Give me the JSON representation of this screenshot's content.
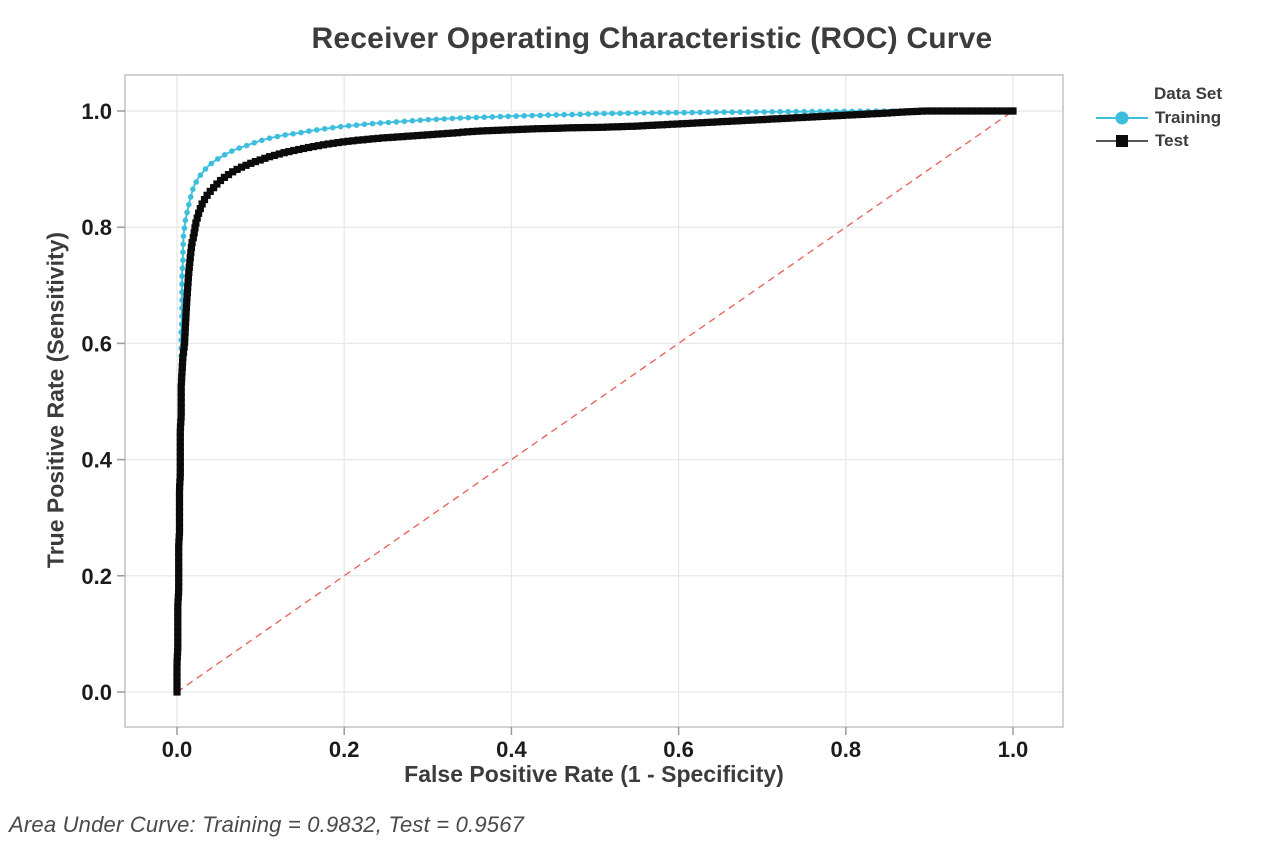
{
  "legend": {
    "title": "Data Set"
  },
  "footer": {
    "auc_note": "Area Under Curve: Training = 0.9832, Test = 0.9567"
  },
  "colors": {
    "training": "#3EBEDD",
    "test": "#0b0b0b",
    "diagonal": "#E4574E",
    "grid": "#e8e8e8",
    "plot_border": "#c6c6c6",
    "tick_mark": "#9a9a9a",
    "tick_label": "#1c1c1c",
    "text": "#3c3c3c"
  },
  "chart_data": {
    "type": "line",
    "title": "Receiver Operating Characteristic (ROC) Curve",
    "xlabel": "False Positive Rate (1 - Specificity)",
    "ylabel": "True Positive Rate (Sensitivity)",
    "xlim": [
      0,
      1
    ],
    "ylim": [
      0,
      1
    ],
    "grid": true,
    "legend_position": "right",
    "x_tick_values": [
      0,
      0.2,
      0.4,
      0.6,
      0.8,
      1.0
    ],
    "x_tick_labels": [
      "0.0",
      "0.2",
      "0.4",
      "0.6",
      "0.8",
      "1.0"
    ],
    "y_tick_values": [
      0,
      0.2,
      0.4,
      0.6,
      0.8,
      1.0
    ],
    "y_tick_labels": [
      "0.0",
      "0.2",
      "0.4",
      "0.6",
      "0.8",
      "1.0"
    ],
    "reference_line": {
      "from": [
        0,
        0
      ],
      "to": [
        1,
        1
      ],
      "style": "dashed",
      "color": "#E4574E"
    },
    "series": [
      {
        "name": "Training",
        "marker": "circle",
        "color": "#3EBEDD",
        "auc": 0.9832,
        "x": [
          0.001,
          0.001,
          0.001,
          0.001,
          0.001,
          0.001,
          0.002,
          0.002,
          0.002,
          0.002,
          0.002,
          0.002,
          0.003,
          0.003,
          0.003,
          0.003,
          0.003,
          0.003,
          0.003,
          0.004,
          0.004,
          0.004,
          0.004,
          0.004,
          0.004,
          0.004,
          0.005,
          0.005,
          0.005,
          0.005,
          0.005,
          0.005,
          0.006,
          0.006,
          0.006,
          0.006,
          0.006,
          0.007,
          0.007,
          0.008,
          0.009,
          0.01,
          0.012,
          0.014,
          0.016,
          0.018,
          0.02,
          0.023,
          0.026,
          0.03,
          0.034,
          0.038,
          0.043,
          0.048,
          0.054,
          0.06,
          0.067,
          0.074,
          0.082,
          0.09,
          0.1,
          0.11,
          0.12,
          0.13,
          0.145,
          0.16,
          0.175,
          0.19,
          0.205,
          0.22,
          0.235,
          0.25,
          0.265,
          0.28,
          0.3,
          0.32,
          0.34,
          0.36,
          0.38,
          0.4,
          0.42,
          0.44,
          0.46,
          0.48,
          0.5,
          0.525,
          0.55,
          0.575,
          0.6,
          0.625,
          0.65,
          0.675,
          0.7,
          0.725,
          0.75,
          0.775,
          0.8,
          0.825,
          0.85,
          0.87,
          0.89
        ],
        "y": [
          0.0,
          0.02,
          0.04,
          0.06,
          0.08,
          0.1,
          0.12,
          0.14,
          0.16,
          0.18,
          0.2,
          0.22,
          0.24,
          0.26,
          0.28,
          0.3,
          0.32,
          0.34,
          0.36,
          0.38,
          0.4,
          0.42,
          0.44,
          0.46,
          0.48,
          0.5,
          0.52,
          0.54,
          0.56,
          0.58,
          0.6,
          0.62,
          0.64,
          0.66,
          0.68,
          0.7,
          0.72,
          0.74,
          0.76,
          0.79,
          0.8,
          0.812,
          0.825,
          0.838,
          0.85,
          0.86,
          0.87,
          0.878,
          0.886,
          0.893,
          0.9,
          0.906,
          0.912,
          0.917,
          0.922,
          0.927,
          0.932,
          0.936,
          0.94,
          0.944,
          0.949,
          0.953,
          0.956,
          0.959,
          0.962,
          0.966,
          0.969,
          0.972,
          0.9745,
          0.9765,
          0.9785,
          0.98,
          0.9815,
          0.983,
          0.985,
          0.9865,
          0.988,
          0.989,
          0.99,
          0.991,
          0.992,
          0.9927,
          0.9935,
          0.994,
          0.9955,
          0.996,
          0.9965,
          0.997,
          0.9972,
          0.9975,
          0.998,
          0.9982,
          0.9985,
          0.9988,
          0.999,
          0.9992,
          0.9995,
          0.9997,
          1.0,
          1.0,
          1.0
        ]
      },
      {
        "name": "Test",
        "marker": "square",
        "color": "#0b0b0b",
        "auc": 0.9567,
        "x": [
          0.0,
          0.0,
          0.0,
          0.001,
          0.001,
          0.001,
          0.001,
          0.002,
          0.002,
          0.002,
          0.002,
          0.003,
          0.003,
          0.003,
          0.003,
          0.004,
          0.004,
          0.004,
          0.004,
          0.005,
          0.005,
          0.005,
          0.006,
          0.007,
          0.009,
          0.01,
          0.011,
          0.012,
          0.013,
          0.014,
          0.015,
          0.016,
          0.017,
          0.018,
          0.02,
          0.021,
          0.023,
          0.026,
          0.03,
          0.035,
          0.04,
          0.045,
          0.05,
          0.055,
          0.06,
          0.065,
          0.07,
          0.075,
          0.08,
          0.09,
          0.1,
          0.11,
          0.12,
          0.13,
          0.14,
          0.15,
          0.16,
          0.17,
          0.18,
          0.19,
          0.2,
          0.215,
          0.23,
          0.245,
          0.26,
          0.275,
          0.29,
          0.31,
          0.33,
          0.35,
          0.37,
          0.39,
          0.41,
          0.43,
          0.45,
          0.47,
          0.49,
          0.51,
          0.53,
          0.55,
          0.57,
          0.59,
          0.61,
          0.63,
          0.65,
          0.67,
          0.69,
          0.71,
          0.73,
          0.75,
          0.77,
          0.79,
          0.81,
          0.83,
          0.85,
          0.865,
          0.88,
          0.895,
          0.92,
          0.95,
          0.975,
          1.0
        ],
        "y": [
          0.0,
          0.025,
          0.05,
          0.075,
          0.1,
          0.125,
          0.15,
          0.175,
          0.2,
          0.225,
          0.25,
          0.275,
          0.3,
          0.325,
          0.35,
          0.375,
          0.4,
          0.425,
          0.45,
          0.475,
          0.5,
          0.525,
          0.55,
          0.575,
          0.6,
          0.63,
          0.655,
          0.68,
          0.7,
          0.72,
          0.735,
          0.75,
          0.762,
          0.773,
          0.785,
          0.795,
          0.81,
          0.825,
          0.84,
          0.853,
          0.862,
          0.87,
          0.878,
          0.884,
          0.889,
          0.894,
          0.898,
          0.902,
          0.905,
          0.911,
          0.916,
          0.921,
          0.925,
          0.929,
          0.932,
          0.935,
          0.938,
          0.9405,
          0.943,
          0.945,
          0.947,
          0.9495,
          0.9515,
          0.9535,
          0.955,
          0.9565,
          0.958,
          0.96,
          0.962,
          0.9645,
          0.966,
          0.9672,
          0.9683,
          0.9695,
          0.97,
          0.971,
          0.9715,
          0.972,
          0.973,
          0.974,
          0.9755,
          0.977,
          0.9785,
          0.98,
          0.9815,
          0.983,
          0.9845,
          0.986,
          0.9875,
          0.989,
          0.9905,
          0.992,
          0.9935,
          0.995,
          0.9965,
          0.998,
          0.999,
          1.0,
          1.0,
          1.0,
          1.0,
          1.0
        ]
      }
    ]
  }
}
